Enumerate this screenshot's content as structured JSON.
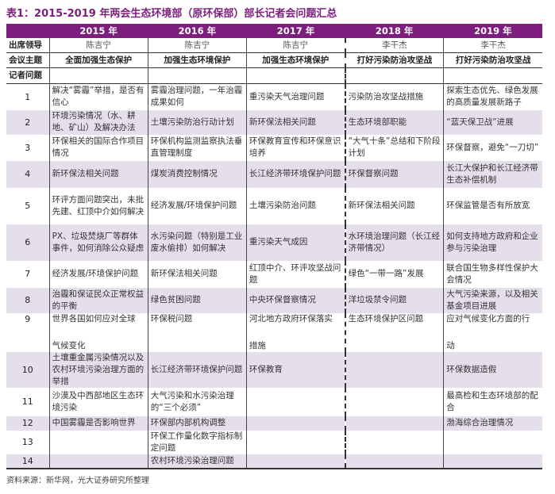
{
  "title": "表1：2015-2019 年两会生态环境部（原环保部）部长记者会问题汇总",
  "years": [
    "2015 年",
    "2016 年",
    "2017 年",
    "2018 年",
    "2019 年"
  ],
  "leader_label": "出席领导",
  "leaders": [
    "陈吉宁",
    "陈吉宁",
    "陈吉宁",
    "李干杰",
    "李干杰"
  ],
  "theme_label": "会议主题",
  "themes": [
    "全面加强生态保护",
    "加强生态环境保护",
    "加强生态环境保护",
    "打好污染防治攻坚战",
    "打好污染防治攻坚战"
  ],
  "questions_label": "记者问题",
  "rows": [
    {
      "n": "1",
      "cells": [
        "解决“雾霾”举措，是否有信心",
        "雾霾治理问题，一年治霾成果如何",
        "重污染天气治理问题",
        "污染防治攻坚战措施",
        "探索生态优先、绿色发展的高质量发展新路子"
      ]
    },
    {
      "n": "2",
      "cells": [
        "环境污染情况（水、耕地、矿山）及解决办法",
        "土壤污染防治行动计划",
        "新环保法相关问题",
        "生态环境部职能",
        "“蓝天保卫战”进展"
      ]
    },
    {
      "n": "3",
      "cells": [
        "环保相关的国际合作项目情况",
        "环保机构监测监察执法垂直管理制度",
        "环保教育宣传和环保意识培养",
        "“大气十条”总结和下阶段计划",
        "环保督察，避免“一刀切”"
      ]
    },
    {
      "n": "4",
      "cells": [
        "新环保法相关问题",
        "煤炭消费控制情况",
        "长江经济带环境保护问题",
        "环保督察问题",
        "长江大保护和长江经济带生态补偿机制"
      ]
    },
    {
      "n": "5",
      "cells": [
        "环评方面问题突出，未批先建、红顶中介如何解决",
        "经济发展/环境保护问题",
        "土壤污染防治问题",
        "新环保法相关问题",
        "环保监管是否有所放宽"
      ]
    },
    {
      "n": "6",
      "cells": [
        "PX、垃圾焚烧厂等群体事件，如何消除公众疑虑",
        "水污染问题（特别是工业废水偷排）如何解决",
        "重污染天气成因",
        "水环境治理问题（长江经济带情况）",
        "如何支持地方政府和企业参与污染治理"
      ]
    },
    {
      "n": "7",
      "cells": [
        "经济发展/环境保护问题",
        "新环保法相关问题",
        "红顶中介、环评攻坚战问题",
        "绿色“一带一路”发展",
        "联合国生物多样性保护大会情况"
      ]
    },
    {
      "n": "8",
      "cells": [
        "治霾和保证民众正常权益的平衡",
        "绿色贫困问题",
        "中央环保督察情况",
        "洋垃圾禁令问题",
        "大气污染来源，以及相关基金项目进展"
      ]
    },
    {
      "n": "9",
      "cells": [
        "世界各国如何应对全球",
        "环保税问题",
        "河北地方政府环保落实",
        "生态环境保护区问题",
        "应对气候变化方面的行"
      ],
      "cont": [
        "气候变化",
        "",
        "措施",
        "",
        "动"
      ]
    },
    {
      "n": "10",
      "cells": [
        "土壤重金属污染情况以及农村环境污染治理方面的举措",
        "长江经济带环境保护问题",
        "环保教育",
        "",
        "环保数据造假"
      ]
    },
    {
      "n": "11",
      "cells": [
        "沙漠及中西部地区生态环境污染",
        "大气污染和水污染治理的“三个必须”",
        "",
        "",
        "最高检和生态环境部的配合"
      ]
    },
    {
      "n": "12",
      "cells": [
        "中国雾霾是否影响世界",
        "环保部内部机构调整",
        "",
        "",
        "渤海综合治理情况"
      ]
    },
    {
      "n": "13",
      "cells": [
        "",
        "环保工作量化数字指标制定问题",
        "",
        "",
        ""
      ]
    },
    {
      "n": "14",
      "cells": [
        "",
        "农村环境污染治理问题",
        "",
        "",
        ""
      ]
    }
  ],
  "footer": "资料来源：新华网，光大证券研究所整理",
  "colors": {
    "header": "#7d1d7d",
    "shade": "#e5dfec"
  }
}
